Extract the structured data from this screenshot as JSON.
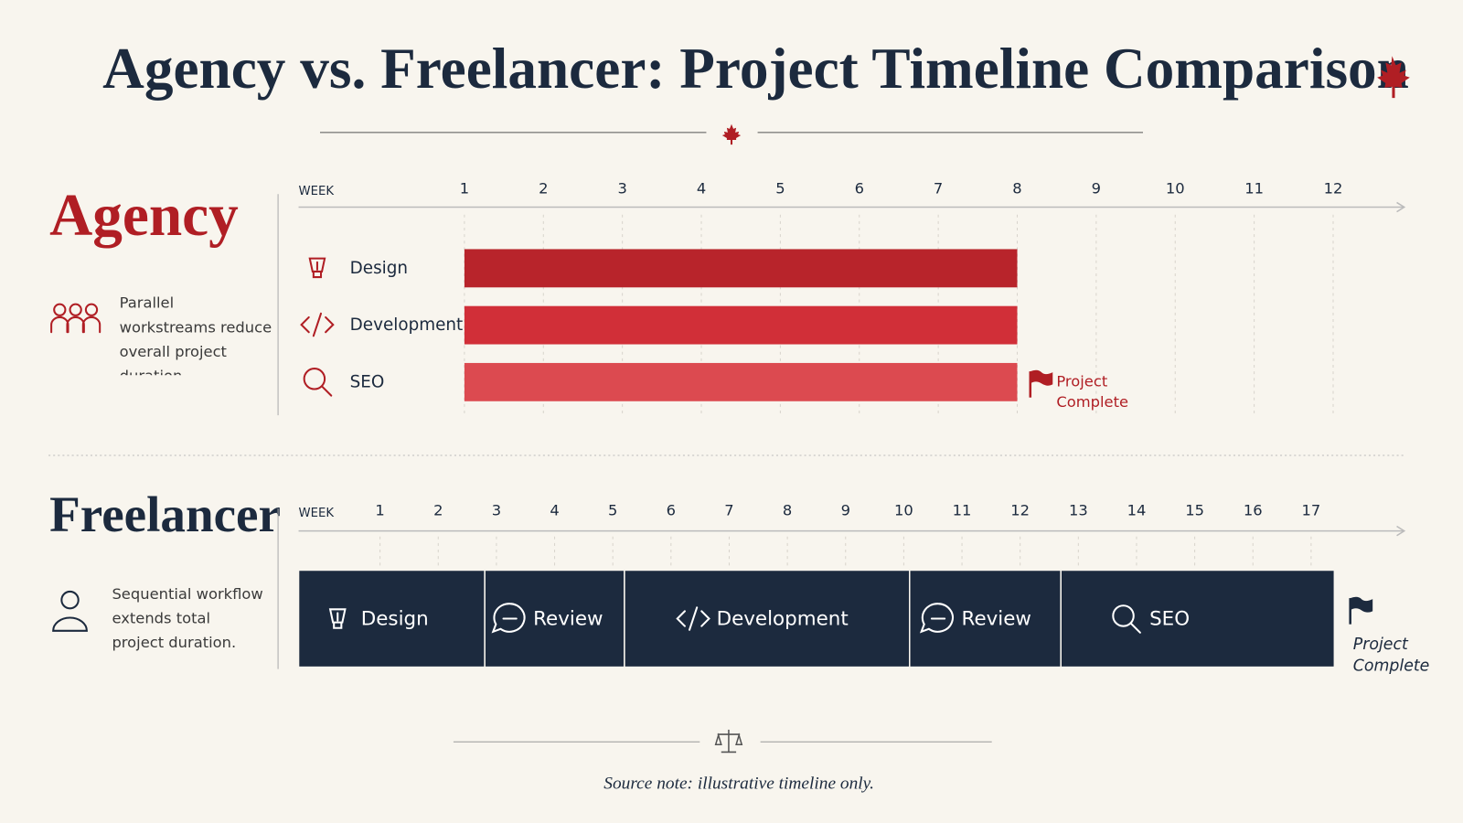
{
  "title": "Agency vs. Freelancer: Project Timeline Comparison",
  "source_note": "Source note: illustrative timeline only.",
  "chart_data": [
    {
      "type": "gantt",
      "title": "Agency",
      "note": "Parallel workstreams reduce overall project duration.",
      "axis_label": "WEEK",
      "xlim": [
        -1.1,
        12.9
      ],
      "xticks": [
        1,
        2,
        3,
        4,
        5,
        6,
        7,
        8,
        9,
        10,
        11,
        12
      ],
      "layout": "parallel",
      "tasks": [
        {
          "name": "Design",
          "start": 1,
          "end": 8,
          "color": "#b8242b"
        },
        {
          "name": "Development",
          "start": 1,
          "end": 8,
          "color": "#d12f38"
        },
        {
          "name": "SEO",
          "start": 1,
          "end": 8,
          "color": "#dc4a50"
        }
      ],
      "complete_label": "Project Complete",
      "accent": "#b01e24"
    },
    {
      "type": "gantt",
      "title": "Freelancer",
      "note": "Sequential workflow extends total project duration.",
      "axis_label": "WEEK",
      "xlim": [
        -0.4,
        18.6
      ],
      "xticks": [
        1,
        2,
        3,
        4,
        5,
        6,
        7,
        8,
        9,
        10,
        11,
        12,
        13,
        14,
        15,
        16,
        17
      ],
      "layout": "sequential",
      "tasks": [
        {
          "name": "Design",
          "start": -0.4,
          "end": 2.8,
          "color": "#1c2a3e"
        },
        {
          "name": "Review",
          "start": 2.8,
          "end": 5.2,
          "color": "#1c2a3e"
        },
        {
          "name": "Development",
          "start": 5.2,
          "end": 10.1,
          "color": "#1c2a3e"
        },
        {
          "name": "Review",
          "start": 10.1,
          "end": 12.7,
          "color": "#1c2a3e"
        },
        {
          "name": "SEO",
          "start": 12.7,
          "end": 17.4,
          "color": "#1c2a3e"
        }
      ],
      "complete_label": "Project Complete",
      "accent": "#1c2a3e"
    }
  ]
}
